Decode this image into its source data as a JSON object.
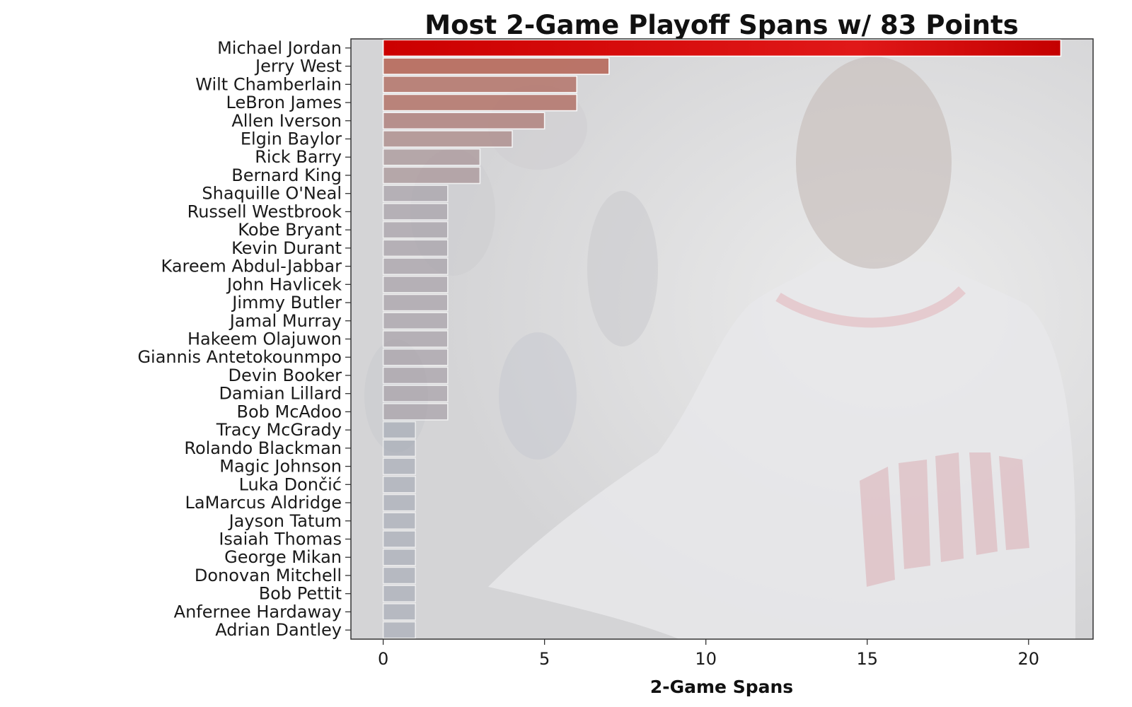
{
  "chart_data": {
    "type": "bar",
    "orientation": "horizontal",
    "title": "Most 2-Game Playoff Spans w/ 83 Points",
    "xlabel": "2-Game Spans",
    "ylabel": "",
    "xlim": [
      -1,
      22
    ],
    "xticks": [
      0,
      5,
      10,
      15,
      20
    ],
    "grid": false,
    "background": "faded photo of Michael Jordan in Chicago Bulls jersey",
    "categories": [
      "Michael Jordan",
      "Jerry West",
      "Wilt Chamberlain",
      "LeBron James",
      "Allen Iverson",
      "Elgin Baylor",
      "Rick Barry",
      "Bernard King",
      "Shaquille O'Neal",
      "Russell Westbrook",
      "Kobe Bryant",
      "Kevin Durant",
      "Kareem Abdul-Jabbar",
      "John Havlicek",
      "Jimmy Butler",
      "Jamal Murray",
      "Hakeem Olajuwon",
      "Giannis Antetokounmpo",
      "Devin Booker",
      "Damian Lillard",
      "Bob McAdoo",
      "Tracy McGrady",
      "Rolando Blackman",
      "Magic Johnson",
      "Luka Dončić",
      "LaMarcus Aldridge",
      "Jayson Tatum",
      "Isaiah Thomas",
      "George Mikan",
      "Donovan Mitchell",
      "Bob Pettit",
      "Anfernee Hardaway",
      "Adrian Dantley"
    ],
    "values": [
      21,
      7,
      6,
      6,
      5,
      4,
      3,
      3,
      2,
      2,
      2,
      2,
      2,
      2,
      2,
      2,
      2,
      2,
      2,
      2,
      2,
      1,
      1,
      1,
      1,
      1,
      1,
      1,
      1,
      1,
      1,
      1,
      1
    ],
    "colors": {
      "highlight": "#cc0000",
      "bar_scale_high": "#b86a5c",
      "bar_scale_low": "#9ea4b0",
      "panel_background": "#d9d9db",
      "axis": "#333333"
    }
  }
}
